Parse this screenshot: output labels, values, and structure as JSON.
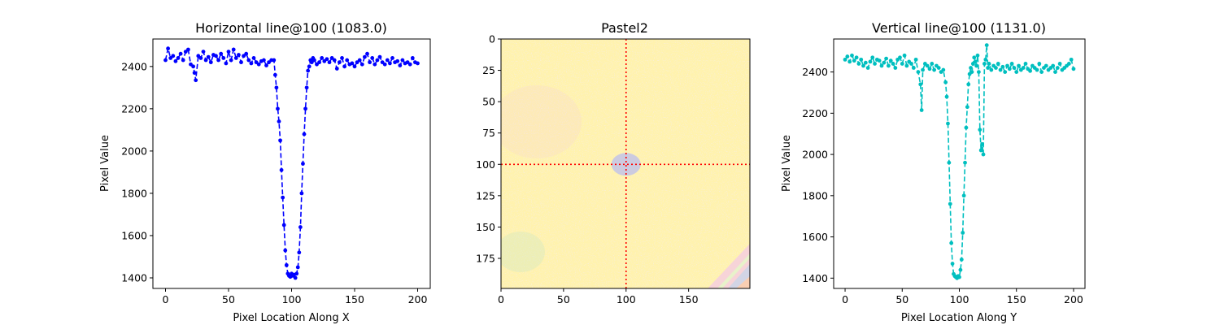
{
  "chart_data": [
    {
      "type": "line",
      "title": "Horizontal line@100 (1083.0)",
      "xlabel": "Pixel Location Along X",
      "ylabel": "Pixel Value",
      "xlim": [
        -10,
        210
      ],
      "ylim": [
        1350,
        2530
      ],
      "xticks": [
        0,
        50,
        100,
        150,
        200
      ],
      "yticks": [
        1400,
        1600,
        1800,
        2000,
        2200,
        2400
      ],
      "series": [
        {
          "color": "#0000ff",
          "style": "dashed with dot markers",
          "x": [
            0,
            2,
            4,
            6,
            8,
            10,
            12,
            14,
            16,
            18,
            20,
            22,
            23,
            24,
            26,
            28,
            30,
            32,
            34,
            36,
            38,
            40,
            42,
            44,
            46,
            48,
            50,
            52,
            54,
            56,
            58,
            60,
            62,
            64,
            66,
            68,
            70,
            72,
            74,
            76,
            78,
            80,
            82,
            84,
            86,
            87,
            88,
            89,
            90,
            91,
            92,
            93,
            94,
            95,
            96,
            97,
            98,
            99,
            100,
            101,
            102,
            103,
            104,
            105,
            106,
            107,
            108,
            109,
            110,
            111,
            112,
            113,
            114,
            115,
            116,
            117,
            118,
            120,
            122,
            124,
            126,
            128,
            130,
            132,
            134,
            136,
            138,
            140,
            142,
            144,
            146,
            148,
            150,
            152,
            154,
            156,
            158,
            160,
            162,
            164,
            166,
            168,
            170,
            172,
            174,
            176,
            178,
            180,
            182,
            184,
            186,
            188,
            190,
            192,
            194,
            196,
            198,
            200
          ],
          "values": [
            2430,
            2485,
            2440,
            2450,
            2425,
            2440,
            2460,
            2430,
            2470,
            2480,
            2410,
            2400,
            2370,
            2335,
            2450,
            2440,
            2470,
            2430,
            2445,
            2420,
            2455,
            2450,
            2430,
            2460,
            2440,
            2415,
            2470,
            2430,
            2480,
            2440,
            2455,
            2420,
            2450,
            2460,
            2430,
            2415,
            2440,
            2420,
            2410,
            2425,
            2430,
            2405,
            2420,
            2430,
            2430,
            2360,
            2300,
            2200,
            2140,
            2050,
            1910,
            1780,
            1650,
            1530,
            1460,
            1420,
            1410,
            1405,
            1420,
            1410,
            1415,
            1400,
            1420,
            1450,
            1520,
            1640,
            1800,
            1940,
            2080,
            2200,
            2300,
            2380,
            2400,
            2430,
            2420,
            2440,
            2430,
            2410,
            2420,
            2440,
            2425,
            2435,
            2420,
            2440,
            2430,
            2390,
            2420,
            2440,
            2400,
            2430,
            2410,
            2415,
            2400,
            2420,
            2430,
            2410,
            2445,
            2460,
            2420,
            2440,
            2410,
            2430,
            2445,
            2420,
            2410,
            2430,
            2415,
            2440,
            2420,
            2425,
            2405,
            2430,
            2415,
            2420,
            2410,
            2440,
            2420,
            2415
          ]
        }
      ]
    },
    {
      "type": "heatmap",
      "title": "Pastel2",
      "colormap": "Pastel2",
      "xlim": [
        0,
        199
      ],
      "ylim": [
        199,
        0
      ],
      "xticks": [
        0,
        50,
        100,
        150
      ],
      "yticks": [
        0,
        25,
        50,
        75,
        100,
        125,
        150,
        175
      ],
      "crosshair": {
        "x": 100,
        "y": 100,
        "color": "#ff0000",
        "style": "dotted"
      },
      "marker": {
        "x": 100,
        "y": 100,
        "color": "#cccbe0"
      },
      "background_color": "#fff2ae"
    },
    {
      "type": "line",
      "title": "Vertical line@100 (1131.0)",
      "xlabel": "Pixel Location Along Y",
      "ylabel": "Pixel Value",
      "xlim": [
        -10,
        210
      ],
      "ylim": [
        1350,
        2560
      ],
      "xticks": [
        0,
        50,
        100,
        150,
        200
      ],
      "yticks": [
        1400,
        1600,
        1800,
        2000,
        2200,
        2400
      ],
      "series": [
        {
          "color": "#00bfbf",
          "style": "dashed with dot markers",
          "x": [
            0,
            2,
            4,
            6,
            8,
            10,
            12,
            14,
            16,
            18,
            20,
            22,
            24,
            26,
            28,
            30,
            32,
            34,
            36,
            38,
            40,
            42,
            44,
            46,
            48,
            50,
            52,
            54,
            56,
            58,
            60,
            62,
            64,
            66,
            67,
            68,
            70,
            72,
            74,
            76,
            78,
            80,
            82,
            84,
            86,
            88,
            89,
            90,
            91,
            92,
            93,
            94,
            95,
            96,
            97,
            98,
            99,
            100,
            101,
            102,
            103,
            104,
            105,
            106,
            107,
            108,
            109,
            110,
            111,
            112,
            113,
            114,
            115,
            116,
            117,
            118,
            119,
            120,
            121,
            122,
            123,
            124,
            125,
            126,
            128,
            130,
            132,
            134,
            136,
            138,
            140,
            142,
            144,
            146,
            148,
            150,
            152,
            154,
            156,
            158,
            160,
            162,
            164,
            166,
            168,
            170,
            172,
            174,
            176,
            178,
            180,
            182,
            184,
            186,
            188,
            190,
            192,
            194,
            196,
            198,
            200
          ],
          "values": [
            2460,
            2475,
            2450,
            2480,
            2455,
            2470,
            2440,
            2460,
            2430,
            2445,
            2420,
            2450,
            2470,
            2440,
            2460,
            2455,
            2430,
            2445,
            2465,
            2430,
            2455,
            2440,
            2420,
            2460,
            2470,
            2440,
            2480,
            2430,
            2450,
            2440,
            2420,
            2460,
            2400,
            2340,
            2215,
            2410,
            2440,
            2430,
            2415,
            2440,
            2410,
            2430,
            2420,
            2400,
            2410,
            2350,
            2280,
            2150,
            1960,
            1760,
            1570,
            1470,
            1420,
            1410,
            1405,
            1400,
            1410,
            1405,
            1440,
            1490,
            1620,
            1800,
            1960,
            2130,
            2230,
            2340,
            2390,
            2420,
            2400,
            2440,
            2470,
            2450,
            2430,
            2480,
            2400,
            2120,
            2020,
            2050,
            2000,
            2440,
            2460,
            2530,
            2420,
            2440,
            2410,
            2430,
            2420,
            2440,
            2410,
            2425,
            2400,
            2430,
            2415,
            2440,
            2420,
            2400,
            2430,
            2410,
            2420,
            2440,
            2415,
            2405,
            2430,
            2420,
            2410,
            2440,
            2400,
            2420,
            2430,
            2410,
            2420,
            2430,
            2400,
            2420,
            2440,
            2410,
            2420,
            2430,
            2440,
            2460,
            2415
          ]
        }
      ]
    }
  ]
}
